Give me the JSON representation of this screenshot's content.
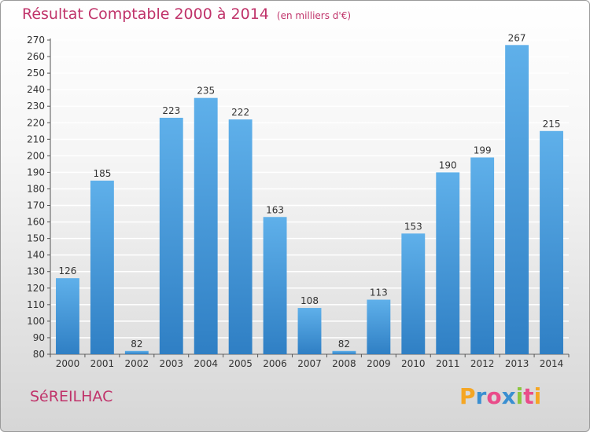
{
  "header": {
    "title": "Résultat Comptable 2000 à 2014",
    "unit": "(en milliers d'€)"
  },
  "commune": "SéREILHAC",
  "logo": {
    "text": "Proxiti",
    "letters": [
      {
        "ch": "P",
        "color": "#f5a623"
      },
      {
        "ch": "r",
        "color": "#3a8fd1"
      },
      {
        "ch": "o",
        "color": "#e94c8a"
      },
      {
        "ch": "x",
        "color": "#3a8fd1"
      },
      {
        "ch": "i",
        "color": "#8cc63f"
      },
      {
        "ch": "t",
        "color": "#e94c8a"
      },
      {
        "ch": "i",
        "color": "#f5a623"
      }
    ]
  },
  "colors": {
    "bar_top": "#5fb0ea",
    "bar_bottom": "#2f7fc4",
    "title": "#c0336a",
    "grid": "#ffffff"
  },
  "chart_data": {
    "type": "bar",
    "title": "Résultat Comptable 2000 à 2014",
    "subtitle": "(en milliers d'€)",
    "categories": [
      "2000",
      "2001",
      "2002",
      "2003",
      "2004",
      "2005",
      "2006",
      "2007",
      "2008",
      "2009",
      "2010",
      "2011",
      "2012",
      "2013",
      "2014"
    ],
    "values": [
      126,
      185,
      82,
      223,
      235,
      222,
      163,
      108,
      82,
      113,
      153,
      190,
      199,
      267,
      215
    ],
    "ylim": [
      80,
      270
    ],
    "yticks": [
      80,
      90,
      100,
      110,
      120,
      130,
      140,
      150,
      160,
      170,
      180,
      190,
      200,
      210,
      220,
      230,
      240,
      250,
      260,
      270
    ],
    "grid": true,
    "data_labels": true
  }
}
